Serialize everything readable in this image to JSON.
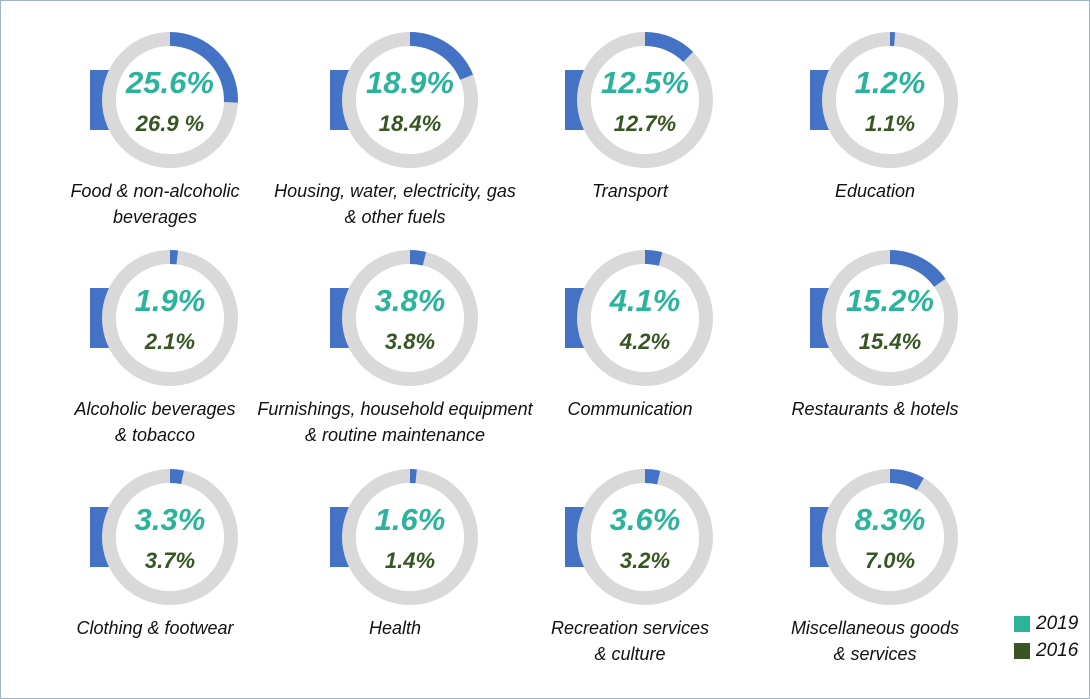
{
  "chart_data": {
    "type": "donut",
    "categories": [
      [
        "Food & non-alcoholic",
        "beverages"
      ],
      [
        "Housing, water, electricity, gas",
        "& other fuels"
      ],
      [
        "Transport"
      ],
      [
        "Education"
      ],
      [
        "Alcoholic beverages",
        "& tobacco"
      ],
      [
        "Furnishings, household equipment",
        "& routine maintenance"
      ],
      [
        "Communication"
      ],
      [
        "Restaurants & hotels"
      ],
      [
        "Clothing & footwear"
      ],
      [
        "Health"
      ],
      [
        "Recreation services",
        "& culture"
      ],
      [
        "Miscellaneous goods",
        "& services"
      ]
    ],
    "series": [
      {
        "name": "2019",
        "color": "#2bb39c",
        "values": [
          25.6,
          18.9,
          12.5,
          1.2,
          1.9,
          3.8,
          4.1,
          15.2,
          3.3,
          1.6,
          3.6,
          8.3
        ],
        "value_labels": [
          "25.6%",
          "18.9%",
          "12.5%",
          "1.2%",
          "1.9%",
          "3.8%",
          "4.1%",
          "15.2%",
          "3.3%",
          "1.6%",
          "3.6%",
          "8.3%"
        ]
      },
      {
        "name": "2016",
        "color": "#375623",
        "values": [
          26.9,
          18.4,
          12.7,
          1.1,
          2.1,
          3.8,
          4.2,
          15.4,
          3.7,
          1.4,
          3.2,
          7.0
        ],
        "value_labels": [
          "26.9 %",
          "18.4%",
          "12.7%",
          "1.1%",
          "2.1%",
          "3.8%",
          "4.2%",
          "15.4%",
          "3.7%",
          "1.4%",
          "3.2%",
          "7.0%"
        ]
      }
    ],
    "ring_color": "#4472c4",
    "track_color": "#d9d9d9"
  }
}
